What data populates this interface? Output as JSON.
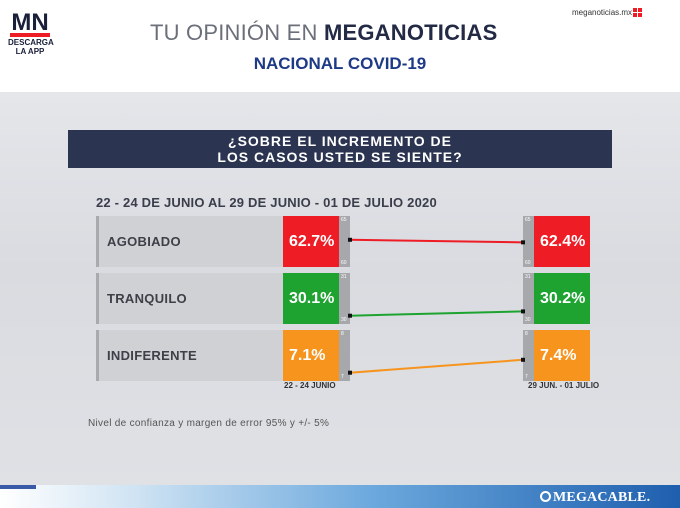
{
  "header": {
    "logo_text": "MN",
    "logo_caption": [
      "DESCARGA",
      "LA APP"
    ],
    "title_light": "TU OPINIÓN EN",
    "title_bold": "MEGANOTICIAS",
    "subtitle": "NACIONAL COVID-19",
    "site_url": "meganoticias.mx"
  },
  "colors": {
    "agobiado": "#ee1c25",
    "tranquilo": "#1ea331",
    "indiferente": "#f7941d",
    "question_bg": "#2b3450",
    "subtitle": "#1d3a87"
  },
  "question": {
    "line1": "¿SOBRE EL INCREMENTO DE",
    "line2": "LOS CASOS USTED SE SIENTE?"
  },
  "chart_data": {
    "type": "slope",
    "title": "¿SOBRE EL INCREMENTO DE LOS CASOS USTED SE SIENTE?",
    "subtitle": "22 - 24 DE JUNIO AL 29 DE JUNIO - 01 DE JULIO 2020",
    "x": [
      "22 - 24 JUNIO",
      "29 JUN. - 01 JULIO"
    ],
    "series": [
      {
        "name": "AGOBIADO",
        "values": [
          62.7,
          62.4
        ],
        "labels": [
          "62.7%",
          "62.4%"
        ],
        "color": "#ee1c25",
        "scale": [
          65,
          60
        ]
      },
      {
        "name": "TRANQUILO",
        "values": [
          30.1,
          30.2
        ],
        "labels": [
          "30.1%",
          "30.2%"
        ],
        "color": "#1ea331",
        "scale": [
          31,
          30
        ]
      },
      {
        "name": "INDIFERENTE",
        "values": [
          7.1,
          7.4
        ],
        "labels": [
          "7.1%",
          "7.4%"
        ],
        "color": "#f7941d",
        "scale": [
          8,
          7
        ]
      }
    ]
  },
  "note": "Nivel de confianza y margen de error 95% y +/- 5%",
  "footer": {
    "brand": "MEGACABLE."
  }
}
